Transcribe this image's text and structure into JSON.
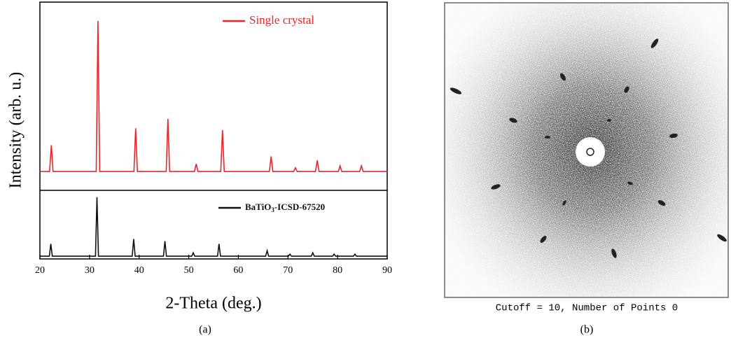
{
  "chart_data": [
    {
      "type": "line",
      "xlim": [
        20,
        90
      ],
      "ylim": [
        0,
        100
      ],
      "ylabel": "Intensity (arb. u.)",
      "series": [
        {
          "name": "Single crystal",
          "color": "#e8262b",
          "x": [
            20,
            21.95,
            22.3,
            22.65,
            31.35,
            31.7,
            32.05,
            38.95,
            39.3,
            39.65,
            45.45,
            45.8,
            46.15,
            51.15,
            51.5,
            51.85,
            56.45,
            56.8,
            57.15,
            66.25,
            66.6,
            66.95,
            71.15,
            71.5,
            71.85,
            75.55,
            75.9,
            76.25,
            80.15,
            80.5,
            80.85,
            84.45,
            84.8,
            85.15,
            90
          ],
          "values": [
            10,
            10,
            24,
            10,
            10,
            90,
            10,
            10,
            33,
            10,
            10,
            38,
            10,
            10,
            14,
            10,
            10,
            32,
            10,
            10,
            18,
            10,
            10,
            12,
            10,
            10,
            16,
            10,
            10,
            13,
            10,
            10,
            13,
            10,
            10
          ]
        }
      ]
    },
    {
      "type": "line",
      "xlim": [
        20,
        90
      ],
      "ylim": [
        0,
        100
      ],
      "xticks": [
        20,
        30,
        40,
        50,
        60,
        70,
        80,
        90
      ],
      "xlabel": "2-Theta (deg.)",
      "series": [
        {
          "name": "BaTiO3-ICSD-67520",
          "color": "#111111",
          "x": [
            20,
            21.9,
            22.2,
            22.5,
            31.2,
            31.5,
            31.8,
            38.6,
            38.9,
            39.2,
            44.9,
            45.2,
            45.5,
            50.6,
            50.9,
            51.2,
            55.8,
            56.1,
            56.4,
            65.5,
            65.8,
            66.1,
            70.1,
            70.4,
            70.7,
            74.7,
            75,
            75.3,
            79,
            79.3,
            79.6,
            83.2,
            83.5,
            83.8,
            90
          ],
          "values": [
            4,
            4,
            22,
            4,
            4,
            90,
            4,
            4,
            29,
            4,
            4,
            26,
            4,
            4,
            9,
            4,
            4,
            22,
            4,
            4,
            12,
            4,
            4,
            7,
            4,
            4,
            9,
            4,
            4,
            7,
            4,
            4,
            7,
            4,
            4
          ]
        }
      ]
    }
  ],
  "image_caption": "Cutoff = 10, Number of Points 0",
  "captions": [
    "(a)",
    "(b)"
  ]
}
